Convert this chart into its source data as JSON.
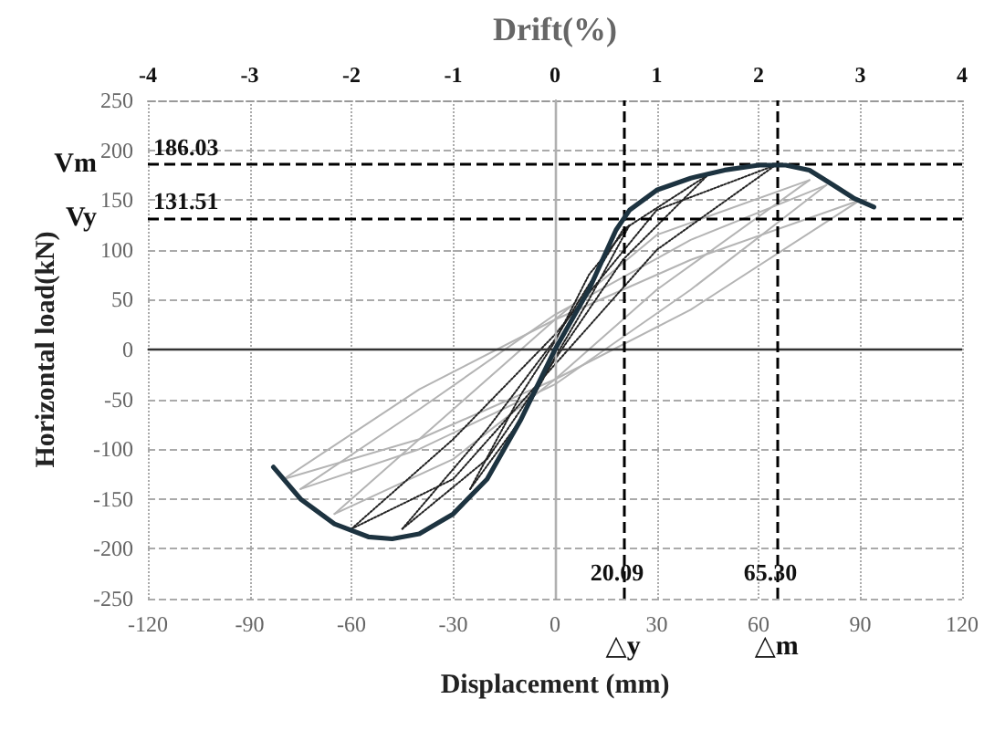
{
  "chart_data": {
    "type": "line",
    "x2label": "Drift(%)",
    "xlabel": "Displacement (mm)",
    "ylabel": "Horizontal load(kN)",
    "xlim": [
      -120,
      120
    ],
    "xticks": [
      -120,
      -90,
      -60,
      -30,
      0,
      30,
      60,
      90,
      120
    ],
    "ylim": [
      -250,
      250
    ],
    "yticks": [
      -250,
      -200,
      -150,
      -100,
      -50,
      0,
      50,
      100,
      150,
      200,
      250
    ],
    "x2lim": [
      -4,
      4
    ],
    "x2ticks": [
      -4,
      -3,
      -2,
      -1,
      0,
      1,
      2,
      3,
      4
    ],
    "grid": true,
    "marker": "none",
    "series": [
      {
        "color": "#1d3340",
        "line_style": "solid",
        "x": [
          -83,
          -75,
          -65,
          -55,
          -48,
          -40,
          -30,
          -20,
          -10,
          0,
          10,
          18,
          22,
          30,
          40,
          50,
          60,
          68,
          75,
          82,
          88,
          94
        ],
        "values": [
          -118,
          -150,
          -175,
          -188,
          -190,
          -185,
          -165,
          -130,
          -70,
          0,
          60,
          120,
          140,
          160,
          172,
          180,
          185,
          185,
          180,
          165,
          152,
          143
        ]
      },
      {
        "color": "#b4b4b4",
        "line_style": "solid",
        "x": [
          -80,
          -40,
          0,
          40,
          90
        ],
        "values": [
          -130,
          -90,
          -30,
          40,
          150
        ]
      },
      {
        "color": "#b4b4b4",
        "line_style": "solid",
        "x": [
          -80,
          -40,
          0,
          40,
          90
        ],
        "values": [
          -130,
          -40,
          30,
          90,
          150
        ]
      },
      {
        "color": "#b4b4b4",
        "line_style": "solid",
        "x": [
          -75,
          -40,
          0,
          40,
          80
        ],
        "values": [
          -140,
          -100,
          -35,
          60,
          165
        ]
      },
      {
        "color": "#b4b4b4",
        "line_style": "solid",
        "x": [
          -75,
          -40,
          0,
          40,
          80
        ],
        "values": [
          -140,
          -60,
          35,
          110,
          165
        ]
      },
      {
        "color": "#b4b4b4",
        "line_style": "solid",
        "x": [
          -65,
          -30,
          0,
          30,
          75
        ],
        "values": [
          -165,
          -110,
          -30,
          60,
          170
        ]
      },
      {
        "color": "#b4b4b4",
        "line_style": "solid",
        "x": [
          -65,
          -30,
          0,
          30,
          75
        ],
        "values": [
          -165,
          -60,
          30,
          115,
          170
        ]
      },
      {
        "color": "#222222",
        "line_style": "dotted",
        "x": [
          -60,
          -30,
          0,
          30,
          65
        ],
        "values": [
          -180,
          -130,
          -15,
          100,
          185
        ]
      },
      {
        "color": "#222222",
        "line_style": "dotted",
        "x": [
          -60,
          -30,
          0,
          30,
          65
        ],
        "values": [
          -180,
          -90,
          15,
          140,
          185
        ]
      },
      {
        "color": "#222222",
        "line_style": "dotted",
        "x": [
          -45,
          -20,
          0,
          20,
          45
        ],
        "values": [
          -180,
          -110,
          -10,
          90,
          175
        ]
      },
      {
        "color": "#222222",
        "line_style": "dotted",
        "x": [
          -45,
          -20,
          0,
          20,
          45
        ],
        "values": [
          -180,
          -80,
          10,
          120,
          175
        ]
      },
      {
        "color": "#222222",
        "line_style": "dotted",
        "x": [
          -25,
          -10,
          0,
          10,
          22
        ],
        "values": [
          -140,
          -70,
          -8,
          50,
          125
        ]
      },
      {
        "color": "#222222",
        "line_style": "dotted",
        "x": [
          -25,
          -10,
          0,
          10,
          22
        ],
        "values": [
          -140,
          -45,
          8,
          75,
          125
        ]
      }
    ],
    "ref_lines": [
      {
        "axis": "y",
        "value": 0,
        "label": null,
        "color": "#333333",
        "line_style": "solid"
      },
      {
        "axis": "x",
        "value": 0,
        "label": null,
        "color": "#b0b0b0",
        "line_style": "solid"
      },
      {
        "axis": "y",
        "value": 186.03,
        "label": "186.03",
        "color": "#000000",
        "line_style": "dashed"
      },
      {
        "axis": "y",
        "value": 131.51,
        "label": "131.51",
        "color": "#000000",
        "line_style": "dashed"
      },
      {
        "axis": "x",
        "value": 20.09,
        "label": "20.09",
        "color": "#000000",
        "line_style": "dashed"
      },
      {
        "axis": "x",
        "value": 65.3,
        "label": "65.30",
        "color": "#000000",
        "line_style": "dashed"
      }
    ],
    "annotations": [
      "Vm",
      "Vy",
      "△y",
      "△m"
    ]
  }
}
